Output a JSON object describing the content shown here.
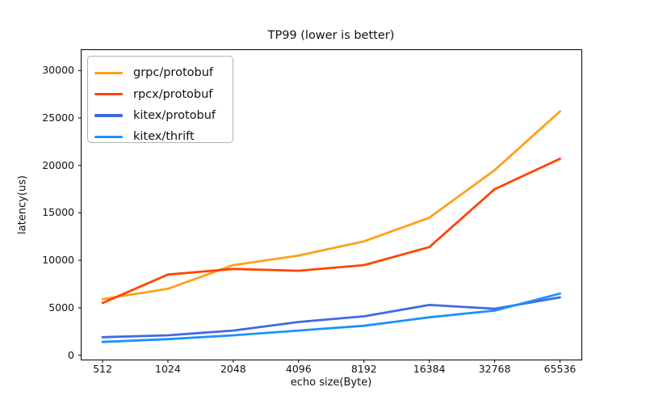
{
  "chart_data": {
    "type": "line",
    "title": "TP99 (lower is better)",
    "xlabel": "echo size(Byte)",
    "ylabel": "latency(us)",
    "categories": [
      "512",
      "1024",
      "2048",
      "4096",
      "8192",
      "16384",
      "32768",
      "65536"
    ],
    "series": [
      {
        "name": "grpc/protobuf",
        "color": "#FFA019",
        "values": [
          5900,
          7000,
          9500,
          10500,
          12000,
          14500,
          19500,
          25700
        ]
      },
      {
        "name": "rpcx/protobuf",
        "color": "#FF4500",
        "values": [
          5500,
          8500,
          9100,
          8900,
          9500,
          11400,
          17500,
          20700
        ]
      },
      {
        "name": "kitex/protobuf",
        "color": "#4169E1",
        "values": [
          1900,
          2100,
          2600,
          3500,
          4100,
          5300,
          4900,
          6100
        ]
      },
      {
        "name": "kitex/thrift",
        "color": "#1E90FF",
        "values": [
          1400,
          1700,
          2100,
          2600,
          3100,
          4000,
          4700,
          6500
        ]
      }
    ],
    "y_ticks": [
      0,
      5000,
      10000,
      15000,
      20000,
      25000,
      30000
    ],
    "ylim": [
      -500,
      32200
    ],
    "grid": false,
    "legend_position": "upper left",
    "axis_color": "#000000",
    "background_color": "#ffffff"
  }
}
